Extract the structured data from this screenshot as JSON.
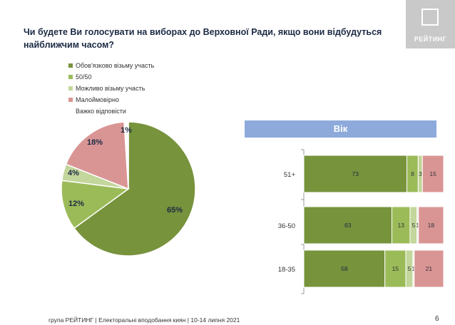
{
  "title": "Чи будете Ви голосувати на виборах до Верховної Ради, якщо вони відбудуться найближчим часом?",
  "logo": {
    "text": "РЕЙТИНГ"
  },
  "age_header": "Вік",
  "footer": "група РЕЙТИНГ | Електоральні вподобання киян | 10-14 липня 2021",
  "page_number": "6",
  "colors": {
    "definitely": "#77933c",
    "fifty": "#9bbb59",
    "maybe": "#c3d69b",
    "unlikely": "#d99594",
    "hard": "#ffffff"
  },
  "chart_data": [
    {
      "type": "pie",
      "labels": [
        "Обов'язково візьму участь",
        "50/50",
        "Можливо візьму участь",
        "Малоймовірно",
        "Важко відповісти"
      ],
      "values": [
        65,
        12,
        4,
        18,
        1
      ],
      "value_labels": [
        "65%",
        "12%",
        "4%",
        "18%",
        "1%"
      ]
    },
    {
      "type": "bar",
      "orientation": "horizontal",
      "stacked": true,
      "categories": [
        "51+",
        "36-50",
        "18-35"
      ],
      "series": [
        {
          "name": "Обов'язково візьму участь",
          "values": [
            73,
            63,
            58
          ]
        },
        {
          "name": "50/50",
          "values": [
            8,
            13,
            15
          ]
        },
        {
          "name": "Можливо візьму участь",
          "values": [
            3,
            5,
            5
          ]
        },
        {
          "name": "Важко відповісти",
          "values": [
            0,
            1,
            1
          ]
        },
        {
          "name": "Малоймовірно",
          "values": [
            15,
            18,
            21
          ]
        }
      ],
      "segment_labels": [
        [
          "73",
          "8",
          "3",
          "",
          "15"
        ],
        [
          "63",
          "13",
          "5",
          "1",
          "18"
        ],
        [
          "58",
          "15",
          "5",
          "1",
          "21"
        ]
      ]
    }
  ]
}
